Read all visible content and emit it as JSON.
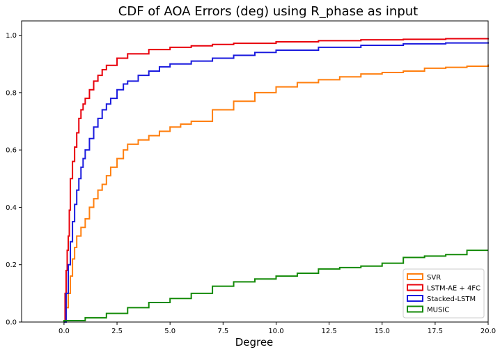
{
  "chart_data": {
    "type": "line",
    "title": "CDF of AOA Errors (deg) using R_phase as input",
    "xlabel": "Degree",
    "ylabel": "",
    "xlim": [
      -2.0,
      20.0
    ],
    "ylim": [
      0.0,
      1.05
    ],
    "xticks": [
      "0.0",
      "2.5",
      "5.0",
      "7.5",
      "10.0",
      "12.5",
      "15.0",
      "17.5",
      "20.0"
    ],
    "yticks": [
      "0.0",
      "0.2",
      "0.4",
      "0.6",
      "0.8",
      "1.0"
    ],
    "grid": false,
    "legend_position": "lower-right",
    "series": [
      {
        "name": "SVR",
        "color": "#ff7f0e",
        "x": [
          0,
          0.1,
          0.2,
          0.3,
          0.4,
          0.5,
          0.6,
          0.8,
          1.0,
          1.2,
          1.4,
          1.6,
          1.8,
          2.0,
          2.2,
          2.5,
          2.8,
          3.0,
          3.5,
          4.0,
          4.5,
          5.0,
          5.5,
          6.0,
          7.0,
          8.0,
          9.0,
          10.0,
          11.0,
          12.0,
          13.0,
          14.0,
          15.0,
          16.0,
          17.0,
          18.0,
          19.0,
          20.0
        ],
        "y": [
          0.0,
          0.05,
          0.1,
          0.16,
          0.22,
          0.26,
          0.3,
          0.33,
          0.36,
          0.4,
          0.43,
          0.46,
          0.48,
          0.51,
          0.54,
          0.57,
          0.6,
          0.62,
          0.635,
          0.65,
          0.665,
          0.68,
          0.69,
          0.7,
          0.74,
          0.77,
          0.8,
          0.82,
          0.835,
          0.845,
          0.855,
          0.865,
          0.87,
          0.875,
          0.885,
          0.888,
          0.892,
          0.898
        ]
      },
      {
        "name": "LSTM-AE + 4FC",
        "color": "#e8000b",
        "x": [
          0,
          0.05,
          0.1,
          0.15,
          0.2,
          0.25,
          0.3,
          0.4,
          0.5,
          0.6,
          0.7,
          0.8,
          0.9,
          1.0,
          1.2,
          1.4,
          1.6,
          1.8,
          2.0,
          2.5,
          3.0,
          4.0,
          5.0,
          6.0,
          7.0,
          8.0,
          10.0,
          12.0,
          14.0,
          16.0,
          18.0,
          20.0
        ],
        "y": [
          0.0,
          0.1,
          0.18,
          0.25,
          0.3,
          0.39,
          0.5,
          0.56,
          0.61,
          0.66,
          0.71,
          0.74,
          0.76,
          0.78,
          0.81,
          0.84,
          0.86,
          0.88,
          0.895,
          0.92,
          0.935,
          0.95,
          0.958,
          0.963,
          0.968,
          0.972,
          0.977,
          0.981,
          0.984,
          0.986,
          0.988,
          0.99
        ]
      },
      {
        "name": "Stacked-LSTM",
        "color": "#1a1ade",
        "x": [
          0,
          0.1,
          0.2,
          0.3,
          0.4,
          0.5,
          0.6,
          0.7,
          0.8,
          0.9,
          1.0,
          1.2,
          1.4,
          1.6,
          1.8,
          2.0,
          2.2,
          2.5,
          2.8,
          3.0,
          3.5,
          4.0,
          4.5,
          5.0,
          6.0,
          7.0,
          8.0,
          9.0,
          10.0,
          12.0,
          14.0,
          16.0,
          18.0,
          20.0
        ],
        "y": [
          0.0,
          0.1,
          0.2,
          0.28,
          0.35,
          0.41,
          0.46,
          0.5,
          0.54,
          0.57,
          0.6,
          0.64,
          0.68,
          0.71,
          0.74,
          0.76,
          0.78,
          0.81,
          0.83,
          0.84,
          0.86,
          0.875,
          0.89,
          0.9,
          0.91,
          0.92,
          0.93,
          0.94,
          0.948,
          0.958,
          0.965,
          0.97,
          0.973,
          0.976
        ]
      },
      {
        "name": "MUSIC",
        "color": "#138a07",
        "x": [
          0,
          1,
          2,
          3,
          4,
          5,
          6,
          7,
          8,
          9,
          10,
          11,
          12,
          13,
          14,
          15,
          16,
          17,
          18,
          19,
          20
        ],
        "y": [
          0.005,
          0.015,
          0.03,
          0.05,
          0.068,
          0.082,
          0.1,
          0.125,
          0.14,
          0.15,
          0.16,
          0.17,
          0.185,
          0.19,
          0.195,
          0.205,
          0.225,
          0.23,
          0.235,
          0.25,
          0.25
        ]
      }
    ]
  }
}
